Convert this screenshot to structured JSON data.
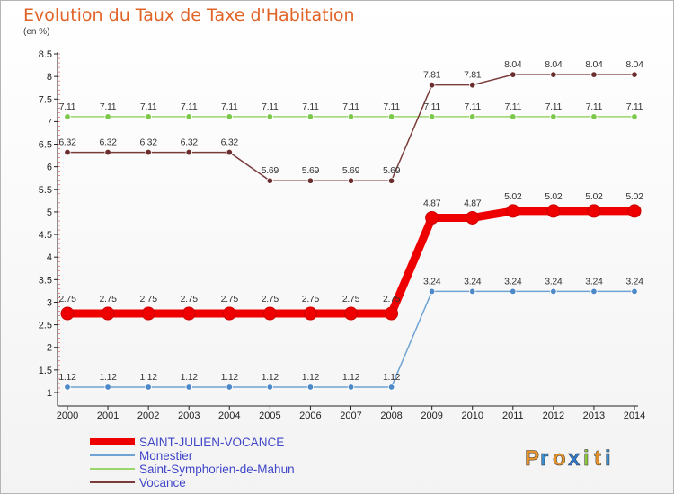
{
  "title": "Evolution du Taux de Taxe d'Habitation",
  "subtitle": "(en %)",
  "logo": {
    "text": "Proxiti",
    "letters": [
      "P",
      "r",
      "o",
      "x",
      "i",
      "t",
      "i"
    ],
    "colors": [
      "#e8942a",
      "#3b8fd1",
      "#e8942a",
      "#2e7bd0",
      "#8cc63f",
      "#e8942a",
      "#3b8fd1"
    ]
  },
  "chart_data": {
    "type": "line",
    "x": [
      "2000",
      "2001",
      "2002",
      "2003",
      "2004",
      "2005",
      "2006",
      "2007",
      "2008",
      "2009",
      "2010",
      "2011",
      "2012",
      "2013",
      "2014"
    ],
    "ylim": [
      1,
      8.5
    ],
    "yticks": [
      "1",
      "1.5",
      "2",
      "2.5",
      "3",
      "3.5",
      "4",
      "4.5",
      "5",
      "5.5",
      "6",
      "6.5",
      "7",
      "7.5",
      "8",
      "8.5"
    ],
    "grid": false,
    "legend_placement": "bottom-left",
    "series": [
      {
        "name": "SAINT-JULIEN-VOCANCE",
        "color": "#ee0000",
        "point_color": "#ee0000",
        "values": [
          2.75,
          2.75,
          2.75,
          2.75,
          2.75,
          2.75,
          2.75,
          2.75,
          2.75,
          4.87,
          4.87,
          5.02,
          5.02,
          5.02,
          5.02
        ],
        "labels": [
          "2.75",
          "2.75",
          "2.75",
          "2.75",
          "2.75",
          "2.75",
          "2.75",
          "2.75",
          "2.75",
          "4.87",
          "4.87",
          "5.02",
          "5.02",
          "5.02",
          "5.02"
        ]
      },
      {
        "name": "Monestier",
        "color": "#6fa3d4",
        "point_color": "#4d88c8",
        "values": [
          1.12,
          1.12,
          1.12,
          1.12,
          1.12,
          1.12,
          1.12,
          1.12,
          1.12,
          3.24,
          3.24,
          3.24,
          3.24,
          3.24,
          3.24
        ],
        "labels": [
          "1.12",
          "1.12",
          "1.12",
          "1.12",
          "1.12",
          "1.12",
          "1.12",
          "1.12",
          "1.12",
          "3.24",
          "3.24",
          "3.24",
          "3.24",
          "3.24",
          "3.24"
        ]
      },
      {
        "name": "Saint-Symphorien-de-Mahun",
        "color": "#9bd66b",
        "point_color": "#7cc84a",
        "values": [
          7.11,
          7.11,
          7.11,
          7.11,
          7.11,
          7.11,
          7.11,
          7.11,
          7.11,
          7.11,
          7.11,
          7.11,
          7.11,
          7.11,
          7.11
        ],
        "labels": [
          "7.11",
          "7.11",
          "7.11",
          "7.11",
          "7.11",
          "7.11",
          "7.11",
          "7.11",
          "7.11",
          "7.11",
          "7.11",
          "7.11",
          "7.11",
          "7.11",
          "7.11"
        ]
      },
      {
        "name": "Vocance",
        "color": "#7a3b3b",
        "point_color": "#6a2e2e",
        "values": [
          6.32,
          6.32,
          6.32,
          6.32,
          6.32,
          5.69,
          5.69,
          5.69,
          5.69,
          7.81,
          7.81,
          8.04,
          8.04,
          8.04,
          8.04
        ],
        "labels": [
          "6.32",
          "6.32",
          "6.32",
          "6.32",
          "6.32",
          "5.69",
          "5.69",
          "5.69",
          "5.69",
          "7.81",
          "7.81",
          "8.04",
          "8.04",
          "8.04",
          "8.04"
        ]
      }
    ]
  }
}
